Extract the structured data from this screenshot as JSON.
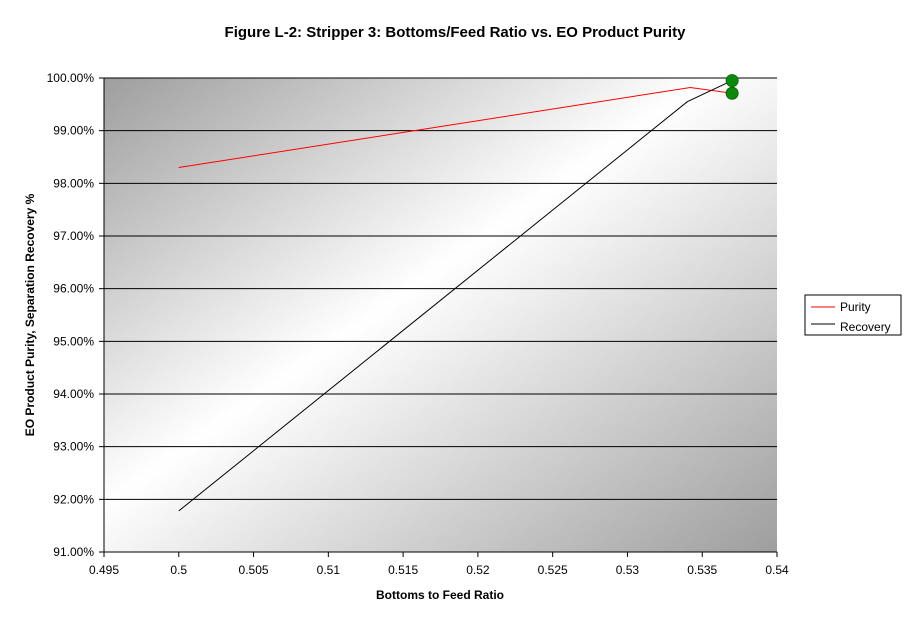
{
  "chart_data": {
    "type": "line",
    "title": "Figure L-2: Stripper 3:  Bottoms/Feed Ratio vs. EO Product Purity",
    "xlabel": "Bottoms to Feed Ratio",
    "ylabel": "EO Product Purity, Separation Recovery  %",
    "xlim": [
      0.495,
      0.54
    ],
    "ylim": [
      0.91,
      1.0
    ],
    "x_ticks": [
      0.495,
      0.5,
      0.505,
      0.51,
      0.515,
      0.52,
      0.525,
      0.53,
      0.535,
      0.54
    ],
    "x_tick_labels": [
      "0.495",
      "0.5",
      "0.505",
      "0.51",
      "0.515",
      "0.52",
      "0.525",
      "0.53",
      "0.535",
      "0.54"
    ],
    "y_ticks": [
      0.91,
      0.92,
      0.93,
      0.94,
      0.95,
      0.96,
      0.97,
      0.98,
      0.99,
      1.0
    ],
    "y_tick_labels": [
      "91.00%",
      "92.00%",
      "93.00%",
      "94.00%",
      "95.00%",
      "96.00%",
      "97.00%",
      "98.00%",
      "99.00%",
      "100.00%"
    ],
    "grid": "horizontal",
    "legend_position": "right",
    "series": [
      {
        "name": "Purity",
        "color": "#ff0000",
        "x": [
          0.5,
          0.5342,
          0.537
        ],
        "y": [
          0.983,
          0.9982,
          0.9971
        ]
      },
      {
        "name": "Recovery",
        "color": "#000000",
        "x": [
          0.5,
          0.534,
          0.537
        ],
        "y": [
          0.9178,
          0.9955,
          0.9995
        ]
      }
    ],
    "highlight_points": {
      "color": "#0a8a0a",
      "points": [
        {
          "x": 0.537,
          "y": 0.9995
        },
        {
          "x": 0.537,
          "y": 0.9971
        }
      ]
    }
  }
}
